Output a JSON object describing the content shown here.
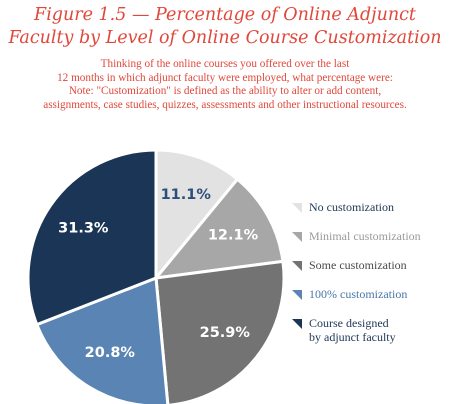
{
  "figure": {
    "title_line1": "Figure 1.5 — Percentage of Online Adjunct",
    "title_line2": "Faculty by Level of Online Course Customization",
    "subtitle_line1": "Thinking of the online courses you offered over the last",
    "subtitle_line2": "12 months in which adjunct faculty were employed, what percentage were:",
    "subtitle_line3": "Note: \"Customization\" is defined as the ability to alter or add content,",
    "subtitle_line4": "assignments, case studies, quizzes, assessments and other instructional resources."
  },
  "chart_data": {
    "type": "pie",
    "title": "Figure 1.5 — Percentage of Online Adjunct Faculty by Level of Online Course Customization",
    "slices": [
      {
        "label": "No customization",
        "value": 11.1,
        "display": "11.1%",
        "color": "#e2e2e2",
        "text_color": "#2b4f7a",
        "legend_text_color": "#1f3654"
      },
      {
        "label": "Minimal customization",
        "value": 12.1,
        "display": "12.1%",
        "color": "#a7a7a7",
        "text_color": "#ffffff",
        "legend_text_color": "#9a9a9a"
      },
      {
        "label": "Some customization",
        "value": 25.9,
        "display": "25.9%",
        "color": "#737373",
        "text_color": "#ffffff",
        "legend_text_color": "#4a4a4a"
      },
      {
        "label": "100% customization",
        "value": 20.8,
        "display": "20.8%",
        "color": "#5a84b3",
        "text_color": "#ffffff",
        "legend_text_color": "#4a76a8"
      },
      {
        "label": "Course designed by adjunct faculty",
        "label_line1": "Course designed",
        "label_line2": "by adjunct faculty",
        "value": 31.3,
        "display": "31.3%",
        "color": "#1b3556",
        "text_color": "#ffffff",
        "legend_text_color": "#1f3654"
      }
    ],
    "start_angle_deg": 0,
    "direction": "clockwise",
    "legend_placement": "right"
  }
}
